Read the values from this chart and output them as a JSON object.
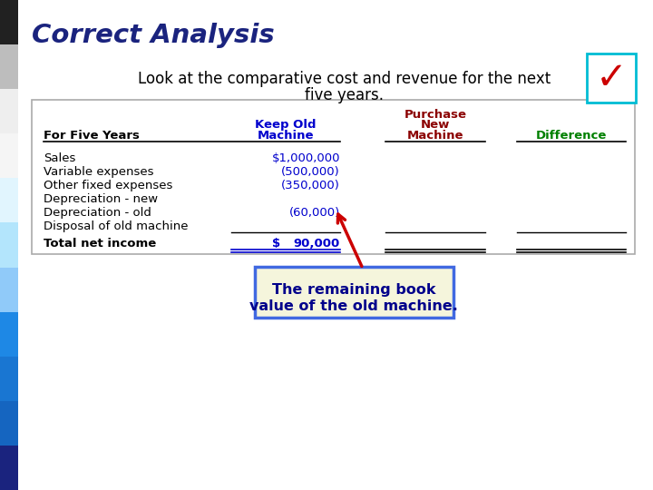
{
  "title": "Correct Analysis",
  "subtitle_line1": "Look at the comparative cost and revenue for the next",
  "subtitle_line2": "five years.",
  "title_color": "#1a237e",
  "subtitle_color": "#000000",
  "bg_color": "#ffffff",
  "left_stripe_colors": [
    "#1a237e",
    "#1565c0",
    "#1976d2",
    "#1e88e5",
    "#90caf9",
    "#b3e5fc",
    "#e1f5fe",
    "#f5f5f5",
    "#eeeeee",
    "#bdbdbd",
    "#212121"
  ],
  "check_border": "#00bcd4",
  "check_color": "#cc0000",
  "table_border": "#aaaaaa",
  "table_bg": "#ffffff",
  "header_col1_color": "#000000",
  "header_col2_color": "#0000cd",
  "header_col3_color": "#8b0000",
  "header_col4_color": "#008000",
  "value_color": "#0000cd",
  "label_color": "#000000",
  "rows": [
    [
      "Sales",
      "$1,000,000",
      "",
      ""
    ],
    [
      "Variable expenses",
      "(500,000)",
      "",
      ""
    ],
    [
      "Other fixed expenses",
      "(350,000)",
      "",
      ""
    ],
    [
      "Depreciation - new",
      "",
      "",
      ""
    ],
    [
      "Depreciation - old",
      "(60,000)",
      "",
      ""
    ],
    [
      "Disposal of old machine",
      "",
      "",
      ""
    ],
    [
      "Total net income",
      "$ 90,000",
      "",
      ""
    ]
  ],
  "annotation_text_line1": "The remaining book",
  "annotation_text_line2": "value of the old machine.",
  "annotation_bg": "#f5f5dc",
  "annotation_border": "#4169e1",
  "annotation_text_color": "#00008b",
  "arrow_color": "#cc0000"
}
